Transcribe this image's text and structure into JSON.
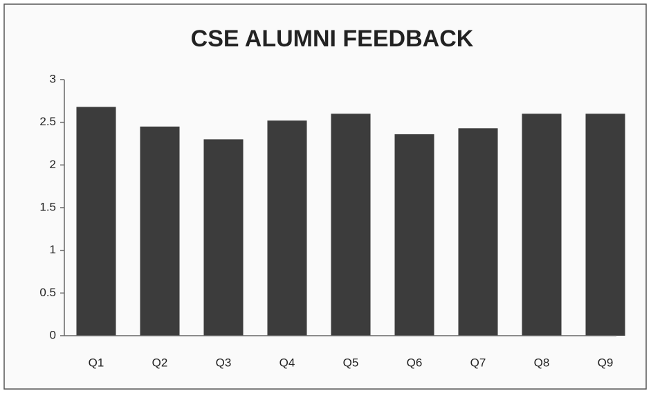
{
  "chart_data": {
    "type": "bar",
    "title": "CSE ALUMNI FEEDBACK",
    "categories": [
      "Q1",
      "Q2",
      "Q3",
      "Q4",
      "Q5",
      "Q6",
      "Q7",
      "Q8",
      "Q9"
    ],
    "values": [
      2.68,
      2.45,
      2.3,
      2.52,
      2.6,
      2.36,
      2.43,
      2.6,
      2.6
    ],
    "color": "#3c3c3c",
    "ylim": [
      0,
      3
    ],
    "yticks": [
      0,
      0.5,
      1,
      1.5,
      2,
      2.5,
      3
    ],
    "grid": false
  }
}
